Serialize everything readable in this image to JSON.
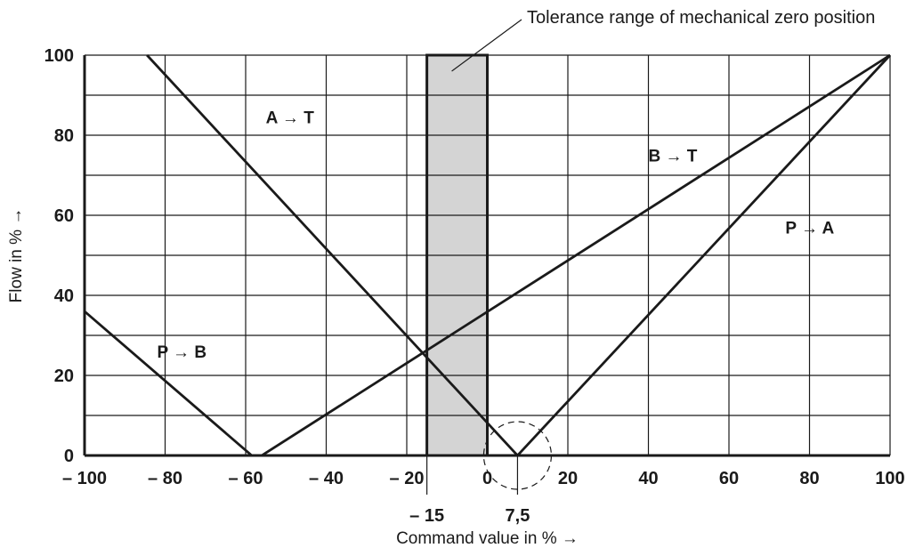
{
  "chart_data": {
    "type": "line",
    "xlabel": "Command value in % →",
    "ylabel": "Flow in % →",
    "xlim": [
      -100,
      100
    ],
    "ylim": [
      0,
      100
    ],
    "x_ticks": [
      -100,
      -80,
      -60,
      -40,
      -20,
      0,
      20,
      40,
      60,
      80,
      100
    ],
    "x_tick_labels": [
      "– 100",
      "– 80",
      "– 60",
      "– 40",
      "– 20",
      "0",
      "20",
      "40",
      "60",
      "80",
      "100"
    ],
    "y_ticks": [
      0,
      20,
      40,
      60,
      80,
      100
    ],
    "y_tick_labels": [
      "0",
      "20",
      "40",
      "60",
      "80",
      "100"
    ],
    "x_grid_step": 20,
    "y_grid_step": 10,
    "grid": true,
    "tolerance_band": {
      "x_range": [
        -15,
        0
      ],
      "fill": "#d4d4d4",
      "label": "Tolerance range of mechanical zero position"
    },
    "zero_crossing": {
      "x": 7.5,
      "label": "7,5"
    },
    "band_edge_label": {
      "x": -15,
      "label": "– 15"
    },
    "series": [
      {
        "name": "A → T",
        "points": [
          [
            -84.5,
            100
          ],
          [
            7.5,
            0
          ]
        ]
      },
      {
        "name": "P → B",
        "points": [
          [
            -100,
            36
          ],
          [
            -58.5,
            0
          ]
        ]
      },
      {
        "name": "B → T",
        "points": [
          [
            -56,
            0
          ],
          [
            100,
            100
          ]
        ]
      },
      {
        "name": "P → A",
        "points": [
          [
            7.5,
            0
          ],
          [
            100,
            100
          ]
        ]
      }
    ]
  }
}
